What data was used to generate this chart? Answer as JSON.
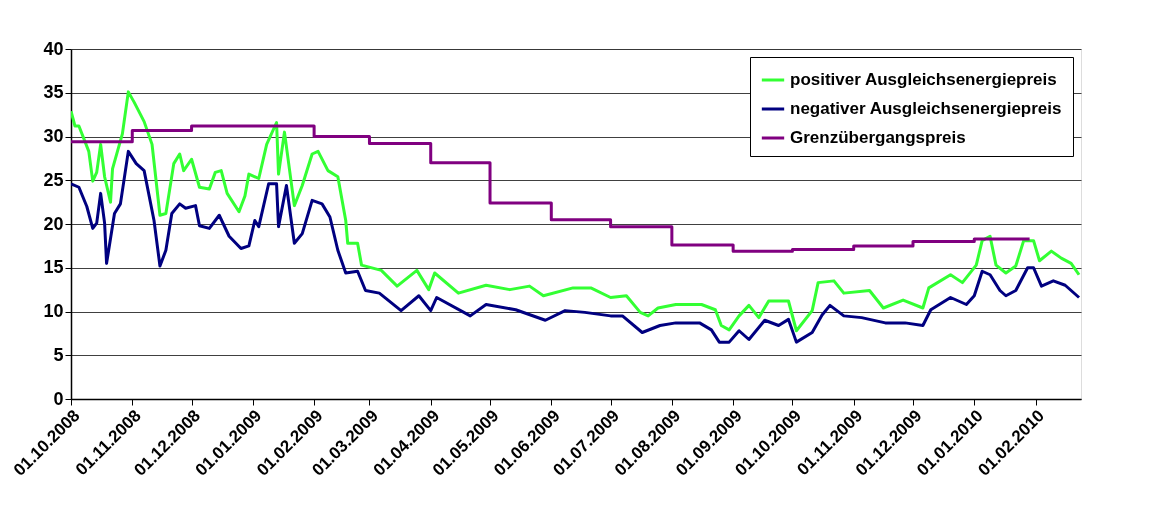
{
  "chart_data": {
    "type": "line",
    "xlim": [
      "2008-10-01",
      "2010-02-24"
    ],
    "xticks": [
      {
        "value": "2008-10-01",
        "label": "01.10.2008"
      },
      {
        "value": "2008-11-01",
        "label": "01.11.2008"
      },
      {
        "value": "2008-12-01",
        "label": "01.12.2008"
      },
      {
        "value": "2009-01-01",
        "label": "01.01.2009"
      },
      {
        "value": "2009-02-01",
        "label": "01.02.2009"
      },
      {
        "value": "2009-03-01",
        "label": "01.03.2009"
      },
      {
        "value": "2009-04-01",
        "label": "01.04.2009"
      },
      {
        "value": "2009-05-01",
        "label": "01.05.2009"
      },
      {
        "value": "2009-06-01",
        "label": "01.06.2009"
      },
      {
        "value": "2009-07-01",
        "label": "01.07.2009"
      },
      {
        "value": "2009-08-01",
        "label": "01.08.2009"
      },
      {
        "value": "2009-09-01",
        "label": "01.09.2009"
      },
      {
        "value": "2009-10-01",
        "label": "01.10.2009"
      },
      {
        "value": "2009-11-01",
        "label": "01.11.2009"
      },
      {
        "value": "2009-12-01",
        "label": "01.12.2009"
      },
      {
        "value": "2010-01-01",
        "label": "01.01.2010"
      },
      {
        "value": "2010-02-01",
        "label": "01.02.2010"
      }
    ],
    "ylim": [
      0,
      40
    ],
    "yticks": [
      0,
      5,
      10,
      15,
      20,
      25,
      30,
      35,
      40
    ],
    "grid": "y",
    "legend": "top right",
    "marker": "none",
    "line_style": "solid",
    "series": [
      {
        "name": "positiver Ausgleichsenergiepreis",
        "color": "#33ff33",
        "x": [
          "2008-10-01",
          "2008-10-03",
          "2008-10-05",
          "2008-10-10",
          "2008-10-12",
          "2008-10-14",
          "2008-10-16",
          "2008-10-18",
          "2008-10-21",
          "2008-10-22",
          "2008-10-27",
          "2008-10-30",
          "2008-11-02",
          "2008-11-07",
          "2008-11-11",
          "2008-11-15",
          "2008-11-18",
          "2008-11-22",
          "2008-11-25",
          "2008-11-27",
          "2008-12-01",
          "2008-12-05",
          "2008-12-10",
          "2008-12-13",
          "2008-12-16",
          "2008-12-19",
          "2008-12-25",
          "2008-12-28",
          "2008-12-30",
          "2009-01-04",
          "2009-01-08",
          "2009-01-13",
          "2009-01-14",
          "2009-01-17",
          "2009-01-22",
          "2009-01-26",
          "2009-01-31",
          "2009-02-03",
          "2009-02-08",
          "2009-02-13",
          "2009-02-17",
          "2009-02-18",
          "2009-02-23",
          "2009-02-25",
          "2009-03-07",
          "2009-03-15",
          "2009-03-25",
          "2009-03-31",
          "2009-04-03",
          "2009-04-15",
          "2009-04-29",
          "2009-05-11",
          "2009-05-21",
          "2009-05-28",
          "2009-06-12",
          "2009-06-21",
          "2009-07-01",
          "2009-07-09",
          "2009-07-16",
          "2009-07-20",
          "2009-07-25",
          "2009-08-03",
          "2009-08-16",
          "2009-08-23",
          "2009-08-26",
          "2009-08-30",
          "2009-09-04",
          "2009-09-09",
          "2009-09-14",
          "2009-09-19",
          "2009-09-29",
          "2009-10-03",
          "2009-10-11",
          "2009-10-14",
          "2009-10-22",
          "2009-10-27",
          "2009-11-09",
          "2009-11-16",
          "2009-11-26",
          "2009-12-06",
          "2009-12-09",
          "2009-12-20",
          "2009-12-26",
          "2010-01-02",
          "2010-01-05",
          "2010-01-09",
          "2010-01-12",
          "2010-01-17",
          "2010-01-22",
          "2010-01-26",
          "2010-01-31",
          "2010-02-03",
          "2010-02-09",
          "2010-02-14",
          "2010-02-19",
          "2010-02-23"
        ],
        "values": [
          32.9,
          31.2,
          31.2,
          28.3,
          24.9,
          25.9,
          29.1,
          25.4,
          22.5,
          26.3,
          30.3,
          35.1,
          33.9,
          31.7,
          29.1,
          21.0,
          21.2,
          26.9,
          28.0,
          26.1,
          27.4,
          24.2,
          24.0,
          25.9,
          26.1,
          23.5,
          21.4,
          23.2,
          25.7,
          25.2,
          29.1,
          31.6,
          25.7,
          30.5,
          22.1,
          24.4,
          28.0,
          28.3,
          26.1,
          25.4,
          20.4,
          17.8,
          17.8,
          15.3,
          14.7,
          12.9,
          14.7,
          12.5,
          14.4,
          12.1,
          13.0,
          12.5,
          12.9,
          11.8,
          12.7,
          12.7,
          11.6,
          11.8,
          9.9,
          9.5,
          10.4,
          10.8,
          10.8,
          10.2,
          8.4,
          7.9,
          9.5,
          10.7,
          9.3,
          11.2,
          11.2,
          7.8,
          10.1,
          13.3,
          13.5,
          12.1,
          12.4,
          10.4,
          11.3,
          10.4,
          12.7,
          14.2,
          13.3,
          15.3,
          18.1,
          18.6,
          15.3,
          14.4,
          15.2,
          18.1,
          18.1,
          15.8,
          16.9,
          16.1,
          15.5,
          14.2
        ]
      },
      {
        "name": "negativer Ausgleichsenergiepreis",
        "color": "#000080",
        "x": [
          "2008-10-01",
          "2008-10-05",
          "2008-10-09",
          "2008-10-12",
          "2008-10-14",
          "2008-10-16",
          "2008-10-18",
          "2008-10-19",
          "2008-10-23",
          "2008-10-26",
          "2008-10-30",
          "2008-11-03",
          "2008-11-07",
          "2008-11-12",
          "2008-11-15",
          "2008-11-18",
          "2008-11-21",
          "2008-11-25",
          "2008-11-28",
          "2008-12-03",
          "2008-12-05",
          "2008-12-10",
          "2008-12-15",
          "2008-12-20",
          "2008-12-26",
          "2008-12-30",
          "2009-01-02",
          "2009-01-04",
          "2009-01-09",
          "2009-01-13",
          "2009-01-14",
          "2009-01-18",
          "2009-01-22",
          "2009-01-26",
          "2009-01-31",
          "2009-02-05",
          "2009-02-09",
          "2009-02-13",
          "2009-02-17",
          "2009-02-23",
          "2009-02-27",
          "2009-03-06",
          "2009-03-17",
          "2009-03-26",
          "2009-04-01",
          "2009-04-04",
          "2009-04-21",
          "2009-04-29",
          "2009-05-14",
          "2009-05-29",
          "2009-06-08",
          "2009-06-18",
          "2009-07-01",
          "2009-07-07",
          "2009-07-17",
          "2009-07-26",
          "2009-08-03",
          "2009-08-15",
          "2009-08-21",
          "2009-08-25",
          "2009-08-30",
          "2009-09-04",
          "2009-09-09",
          "2009-09-17",
          "2009-09-24",
          "2009-09-29",
          "2009-10-03",
          "2009-10-11",
          "2009-10-16",
          "2009-10-20",
          "2009-10-27",
          "2009-11-05",
          "2009-11-17",
          "2009-11-27",
          "2009-12-06",
          "2009-12-10",
          "2009-12-20",
          "2009-12-28",
          "2010-01-01",
          "2010-01-05",
          "2010-01-09",
          "2010-01-14",
          "2010-01-17",
          "2010-01-22",
          "2010-01-28",
          "2010-01-31",
          "2010-02-04",
          "2010-02-10",
          "2010-02-16",
          "2010-02-23"
        ],
        "values": [
          24.6,
          24.2,
          22.0,
          19.5,
          20.1,
          23.5,
          20.1,
          15.5,
          21.2,
          22.3,
          28.3,
          26.9,
          26.1,
          20.4,
          15.2,
          17.0,
          21.2,
          22.3,
          21.8,
          22.1,
          19.8,
          19.5,
          21.0,
          18.6,
          17.2,
          17.5,
          20.4,
          19.7,
          24.6,
          24.6,
          19.7,
          24.4,
          17.8,
          18.9,
          22.7,
          22.3,
          20.8,
          17.0,
          14.4,
          14.6,
          12.4,
          12.1,
          10.1,
          11.8,
          10.1,
          11.6,
          9.5,
          10.8,
          10.2,
          9.0,
          10.1,
          9.9,
          9.5,
          9.5,
          7.6,
          8.4,
          8.7,
          8.7,
          7.9,
          6.5,
          6.5,
          7.8,
          6.8,
          9.0,
          8.4,
          9.1,
          6.5,
          7.6,
          9.6,
          10.7,
          9.5,
          9.3,
          8.7,
          8.7,
          8.4,
          10.2,
          11.6,
          10.8,
          11.8,
          14.6,
          14.2,
          12.4,
          11.8,
          12.4,
          15.0,
          15.0,
          12.9,
          13.5,
          13.0,
          11.6
        ]
      },
      {
        "name": "Grenzübergangspreis",
        "color": "#800080",
        "type": "step",
        "x": [
          "2008-10-01",
          "2008-11-01",
          "2008-12-01",
          "2009-02-01",
          "2009-03-01",
          "2009-04-01",
          "2009-05-01",
          "2009-06-01",
          "2009-07-01",
          "2009-08-01",
          "2009-09-01",
          "2009-10-01",
          "2009-11-01",
          "2009-12-01",
          "2010-01-01",
          "2010-01-29"
        ],
        "values": [
          29.4,
          30.7,
          31.2,
          30.0,
          29.2,
          27.0,
          22.4,
          20.5,
          19.7,
          17.6,
          16.9,
          17.1,
          17.5,
          18.0,
          18.3,
          18.3
        ]
      }
    ]
  }
}
